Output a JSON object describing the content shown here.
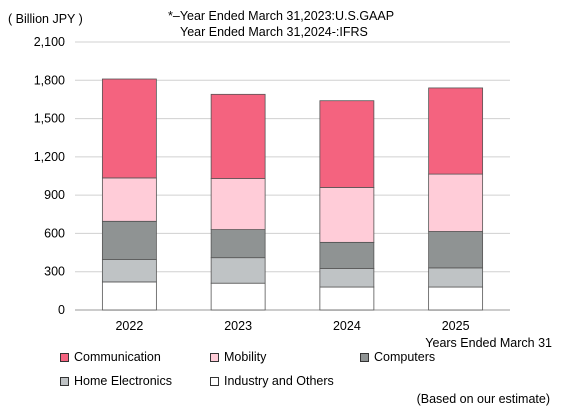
{
  "chart_data": {
    "type": "bar",
    "stacked": true,
    "title": "",
    "ylabel": "( Billion JPY )",
    "xlabel": "Years Ended March 31",
    "notes": [
      "*–Year Ended  March 31,2023:U.S.GAAP",
      "Year Ended  March 31,2024-:IFRS"
    ],
    "footnote": "(Based on our estimate)",
    "ylim": [
      0,
      2100
    ],
    "yticks": [
      "0",
      "300",
      "600",
      "900",
      "1,200",
      "1,500",
      "1,800",
      "2,100"
    ],
    "ytick_values": [
      0,
      300,
      600,
      900,
      1200,
      1500,
      1800,
      2100
    ],
    "categories": [
      "2022",
      "2023",
      "2024",
      "2025"
    ],
    "grid": true,
    "legend_position": "bottom",
    "series": [
      {
        "name": "Industry and Others",
        "color": "#ffffff",
        "values": [
          220,
          210,
          180,
          180
        ]
      },
      {
        "name": "Home Electronics",
        "color": "#bfc3c5",
        "values": [
          175,
          200,
          145,
          150
        ]
      },
      {
        "name": "Computers",
        "color": "#8f9393",
        "values": [
          300,
          220,
          205,
          285
        ]
      },
      {
        "name": "Mobility",
        "color": "#ffccd8",
        "values": [
          340,
          400,
          430,
          450
        ]
      },
      {
        "name": "Communication",
        "color": "#f4637f",
        "values": [
          775,
          660,
          680,
          675
        ]
      }
    ],
    "legend_order": [
      "Communication",
      "Mobility",
      "Computers",
      "Home Electronics",
      "Industry and Others"
    ]
  }
}
